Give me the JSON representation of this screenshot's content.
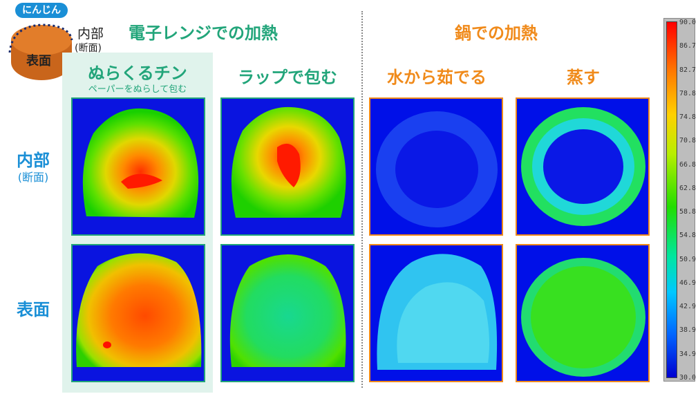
{
  "carrot": {
    "badge": "にんじん",
    "surface_label": "表面",
    "inner_label": "内部",
    "inner_sub": "(断面)"
  },
  "groups": {
    "microwave": "電子レンジでの加熱",
    "pot": "鍋での加熱"
  },
  "methods": [
    {
      "title": "ぬらくるチン",
      "subtitle": "ペーパーをぬらして包む"
    },
    {
      "title": "ラップで包む"
    },
    {
      "title": "水から茹でる"
    },
    {
      "title": "蒸す"
    }
  ],
  "rows": {
    "inner": {
      "label": "内部",
      "sub": "(断面)"
    },
    "surface": {
      "label": "表面"
    }
  },
  "scale": {
    "ticks": [
      "90.0",
      "86.7",
      "82.7",
      "78.8",
      "74.8",
      "70.8",
      "66.8",
      "62.8",
      "58.8",
      "54.8",
      "50.9",
      "46.9",
      "42.9",
      "38.9",
      "34.9",
      "30.0"
    ]
  },
  "colors": {
    "microwave_accent": "#22a57a",
    "pot_accent": "#f08a1a",
    "row_label": "#1a8fd6"
  }
}
